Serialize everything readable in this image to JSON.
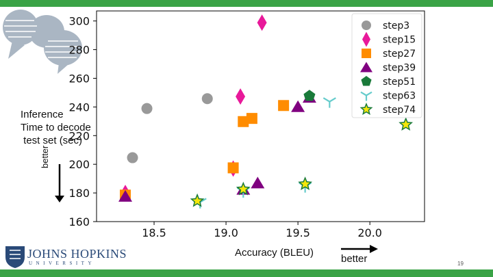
{
  "slide": {
    "side_label_lines": [
      "Inference",
      "Time to decode",
      " test set (sec)"
    ],
    "better_vertical": "better",
    "better_horizontal": "better",
    "page_number": "19",
    "logo_name": "JOHNS HOPKINS",
    "logo_sub": "UNIVERSITY",
    "colors": {
      "green_bar": "#3aa346",
      "jhu_blue": "#2a4a78"
    }
  },
  "chart_data": {
    "type": "scatter",
    "title": "",
    "xlabel": "Accuracy (BLEU)",
    "ylabel": "",
    "xlim": [
      18.1,
      20.38
    ],
    "ylim": [
      160,
      307
    ],
    "xticks": [
      18.5,
      19.0,
      19.5,
      20.0
    ],
    "xtick_labels": [
      "18.5",
      "19.0",
      "19.5",
      "20.0"
    ],
    "yticks": [
      160,
      180,
      200,
      220,
      240,
      260,
      280,
      300
    ],
    "ytick_labels": [
      "160",
      "180",
      "200",
      "220",
      "240",
      "260",
      "280",
      "300"
    ],
    "grid": false,
    "legend_position": "top-right",
    "series": [
      {
        "name": "step3",
        "marker": "circle",
        "color": "#999999",
        "points": [
          [
            18.35,
            204.6
          ],
          [
            18.45,
            238.9
          ],
          [
            18.87,
            245.8
          ]
        ]
      },
      {
        "name": "step15",
        "marker": "diamond",
        "color": "#e8199a",
        "points": [
          [
            18.3,
            180
          ],
          [
            19.05,
            197
          ],
          [
            19.1,
            247.3
          ],
          [
            19.25,
            298.8
          ]
        ]
      },
      {
        "name": "step27",
        "marker": "square",
        "color": "#ff8c00",
        "points": [
          [
            18.3,
            178.5
          ],
          [
            19.05,
            197.5
          ],
          [
            19.12,
            229.8
          ],
          [
            19.18,
            232
          ],
          [
            19.4,
            241
          ]
        ]
      },
      {
        "name": "step39",
        "marker": "triangle",
        "color": "#800080",
        "points": [
          [
            18.3,
            177.7
          ],
          [
            19.12,
            182.6
          ],
          [
            19.22,
            187
          ],
          [
            19.5,
            240.3
          ],
          [
            19.58,
            246.8
          ]
        ]
      },
      {
        "name": "step51",
        "marker": "pentagon",
        "color": "#1a7a3a",
        "points": [
          [
            19.58,
            247.7
          ]
        ]
      },
      {
        "name": "step63",
        "marker": "tri_down",
        "color": "#66cccc",
        "points": [
          [
            18.82,
            173.5
          ],
          [
            19.12,
            181
          ],
          [
            19.55,
            184.5
          ],
          [
            19.72,
            243.7
          ]
        ]
      },
      {
        "name": "step74",
        "marker": "star",
        "color": "#f5e60a",
        "points": [
          [
            18.8,
            174.4
          ],
          [
            19.12,
            182.6
          ],
          [
            19.55,
            186.2
          ],
          [
            20.25,
            227.7
          ]
        ]
      }
    ]
  }
}
